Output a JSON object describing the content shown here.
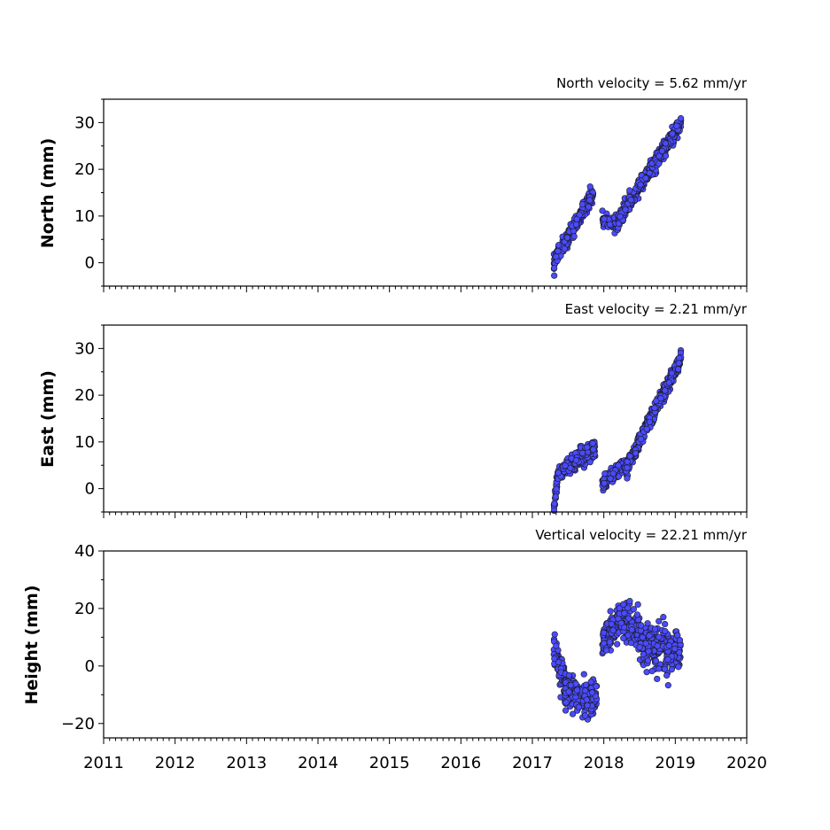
{
  "chart_data": [
    {
      "type": "scatter",
      "title": "North velocity = 5.62 mm/yr",
      "ylabel": "North (mm)",
      "xlim": [
        2011,
        2020
      ],
      "ylim": [
        -5,
        35
      ],
      "yticks": [
        0,
        10,
        20,
        30
      ],
      "xtick_labels_visible": false,
      "marker_color": "#4a4aff",
      "segments": [
        {
          "x_start": 2017.3,
          "x_end": 2017.85,
          "y_start": 0,
          "y_end": 15,
          "noise": 1.4,
          "count": 260
        },
        {
          "x_start": 2017.98,
          "x_end": 2018.2,
          "y_start": 9,
          "y_end": 8,
          "noise": 1.3,
          "count": 60
        },
        {
          "x_start": 2018.2,
          "x_end": 2019.08,
          "y_start": 9,
          "y_end": 30,
          "noise": 1.4,
          "count": 420
        }
      ]
    },
    {
      "type": "scatter",
      "title": "East velocity = 2.21 mm/yr",
      "ylabel": "East (mm)",
      "xlim": [
        2011,
        2020
      ],
      "ylim": [
        -5,
        35
      ],
      "yticks": [
        0,
        10,
        20,
        30
      ],
      "xtick_labels_visible": false,
      "marker_color": "#4a4aff",
      "segments": [
        {
          "x_start": 2017.3,
          "x_end": 2017.35,
          "y_start": -4,
          "y_end": 2,
          "noise": 1.2,
          "count": 30
        },
        {
          "x_start": 2017.35,
          "x_end": 2017.88,
          "y_start": 3,
          "y_end": 9,
          "noise": 1.6,
          "count": 240
        },
        {
          "x_start": 2017.98,
          "x_end": 2018.3,
          "y_start": 1,
          "y_end": 5,
          "noise": 1.4,
          "count": 110
        },
        {
          "x_start": 2018.3,
          "x_end": 2019.08,
          "y_start": 4,
          "y_end": 28,
          "noise": 1.3,
          "count": 380
        }
      ]
    },
    {
      "type": "scatter",
      "title": "Vertical velocity = 22.21 mm/yr",
      "ylabel": "Height (mm)",
      "xlim": [
        2011,
        2020
      ],
      "ylim": [
        -25,
        40
      ],
      "yticks": [
        -20,
        0,
        20,
        40
      ],
      "xtick_labels_visible": true,
      "xticks": [
        2011,
        2012,
        2013,
        2014,
        2015,
        2016,
        2017,
        2018,
        2019,
        2020
      ],
      "xtick_labels": [
        "2011",
        "2012",
        "2013",
        "2014",
        "2015",
        "2016",
        "2017",
        "2018",
        "2019",
        "2020"
      ],
      "marker_color": "#4a4aff",
      "segments": [
        {
          "x_start": 2017.3,
          "x_end": 2017.45,
          "y_start": 5,
          "y_end": -6,
          "noise": 5,
          "count": 70
        },
        {
          "x_start": 2017.45,
          "x_end": 2017.9,
          "y_start": -8,
          "y_end": -13,
          "noise": 5,
          "count": 220
        },
        {
          "x_start": 2017.98,
          "x_end": 2018.2,
          "y_start": 8,
          "y_end": 15,
          "noise": 5,
          "count": 90
        },
        {
          "x_start": 2018.2,
          "x_end": 2018.5,
          "y_start": 16,
          "y_end": 12,
          "noise": 6,
          "count": 130
        },
        {
          "x_start": 2018.5,
          "x_end": 2019.08,
          "y_start": 8,
          "y_end": 4,
          "noise": 6,
          "count": 260
        }
      ]
    }
  ]
}
